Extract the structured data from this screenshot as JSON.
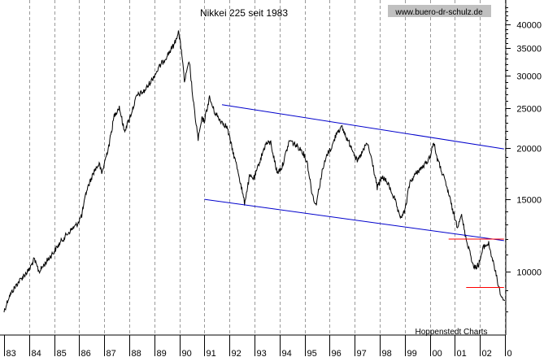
{
  "chart_data": {
    "type": "line",
    "title": "Nikkei 225 seit 1983",
    "source_badge": "www.buero-dr-schulz.de",
    "credit": "Hoppenstedt Charts",
    "y_scale": "log",
    "ylim": [
      7000,
      45000
    ],
    "y_ticks": [
      {
        "value": 40000,
        "label": "40000"
      },
      {
        "value": 35000,
        "label": "35000"
      },
      {
        "value": 30000,
        "label": "30000"
      },
      {
        "value": 25000,
        "label": "25000"
      },
      {
        "value": 20000,
        "label": "20000"
      },
      {
        "value": 15000,
        "label": "15000"
      },
      {
        "value": 10000,
        "label": "10000"
      }
    ],
    "x_ticks": [
      "83",
      "84",
      "85",
      "86",
      "87",
      "88",
      "89",
      "90",
      "91",
      "92",
      "93",
      "94",
      "95",
      "96",
      "97",
      "98",
      "99",
      "00",
      "01",
      "02",
      "0"
    ],
    "xlim": [
      1983.0,
      2003.0
    ],
    "grid": true,
    "series": [
      {
        "color": "#000000",
        "points": [
          [
            1983.0,
            8000
          ],
          [
            1983.2,
            8700
          ],
          [
            1983.5,
            9300
          ],
          [
            1983.8,
            9800
          ],
          [
            1984.0,
            10100
          ],
          [
            1984.2,
            10700
          ],
          [
            1984.4,
            10000
          ],
          [
            1984.7,
            10600
          ],
          [
            1985.0,
            11200
          ],
          [
            1985.3,
            11900
          ],
          [
            1985.6,
            12500
          ],
          [
            1985.9,
            13000
          ],
          [
            1986.1,
            13700
          ],
          [
            1986.3,
            15800
          ],
          [
            1986.6,
            17600
          ],
          [
            1986.8,
            18300
          ],
          [
            1986.9,
            17300
          ],
          [
            1987.2,
            20500
          ],
          [
            1987.4,
            24000
          ],
          [
            1987.6,
            25200
          ],
          [
            1987.8,
            22000
          ],
          [
            1988.0,
            23500
          ],
          [
            1988.3,
            26800
          ],
          [
            1988.6,
            27500
          ],
          [
            1988.9,
            29300
          ],
          [
            1989.2,
            31500
          ],
          [
            1989.5,
            33500
          ],
          [
            1989.8,
            35800
          ],
          [
            1989.96,
            38500
          ],
          [
            1990.1,
            34000
          ],
          [
            1990.2,
            29000
          ],
          [
            1990.4,
            32500
          ],
          [
            1990.55,
            26000
          ],
          [
            1990.75,
            21000
          ],
          [
            1990.9,
            23500
          ],
          [
            1991.0,
            23300
          ],
          [
            1991.2,
            26500
          ],
          [
            1991.4,
            24500
          ],
          [
            1991.6,
            23500
          ],
          [
            1991.9,
            22500
          ],
          [
            1992.1,
            20000
          ],
          [
            1992.35,
            17500
          ],
          [
            1992.6,
            14700
          ],
          [
            1992.8,
            17000
          ],
          [
            1993.0,
            16900
          ],
          [
            1993.2,
            18500
          ],
          [
            1993.45,
            20500
          ],
          [
            1993.65,
            20600
          ],
          [
            1993.9,
            17400
          ],
          [
            1994.1,
            18000
          ],
          [
            1994.4,
            20900
          ],
          [
            1994.7,
            20200
          ],
          [
            1994.9,
            19700
          ],
          [
            1995.1,
            18500
          ],
          [
            1995.3,
            15500
          ],
          [
            1995.45,
            14500
          ],
          [
            1995.7,
            17500
          ],
          [
            1995.9,
            19300
          ],
          [
            1996.1,
            20200
          ],
          [
            1996.3,
            22000
          ],
          [
            1996.5,
            22400
          ],
          [
            1996.7,
            21000
          ],
          [
            1996.9,
            20000
          ],
          [
            1997.1,
            18500
          ],
          [
            1997.3,
            19500
          ],
          [
            1997.5,
            20600
          ],
          [
            1997.7,
            18500
          ],
          [
            1997.9,
            16000
          ],
          [
            1998.1,
            17000
          ],
          [
            1998.3,
            16500
          ],
          [
            1998.6,
            15000
          ],
          [
            1998.8,
            13500
          ],
          [
            1999.0,
            14000
          ],
          [
            1999.2,
            16500
          ],
          [
            1999.5,
            17500
          ],
          [
            1999.8,
            18200
          ],
          [
            2000.0,
            19000
          ],
          [
            2000.15,
            20700
          ],
          [
            2000.3,
            18800
          ],
          [
            2000.55,
            17000
          ],
          [
            2000.75,
            15500
          ],
          [
            2000.95,
            13800
          ],
          [
            2001.1,
            12900
          ],
          [
            2001.25,
            13800
          ],
          [
            2001.45,
            12000
          ],
          [
            2001.6,
            11200
          ],
          [
            2001.75,
            10200
          ],
          [
            2001.95,
            10400
          ],
          [
            2002.15,
            11500
          ],
          [
            2002.35,
            11700
          ],
          [
            2002.55,
            10400
          ],
          [
            2002.75,
            9200
          ],
          [
            2002.85,
            8700
          ],
          [
            2003.0,
            8500
          ]
        ]
      },
      {
        "name": "",
        "color": "#0000cc",
        "points": [
          [
            1991.7,
            25500
          ],
          [
            2002.96,
            19900
          ]
        ]
      },
      {
        "name": "",
        "color": "#0000cc",
        "points": [
          [
            1991.0,
            15000
          ],
          [
            2002.96,
            11900
          ]
        ]
      },
      {
        "name": "",
        "color": "#ff0000",
        "points": [
          [
            2000.75,
            12000
          ],
          [
            2002.96,
            12000
          ]
        ]
      },
      {
        "name": "",
        "color": "#ff0000",
        "points": [
          [
            2001.45,
            9150
          ],
          [
            2002.96,
            9150
          ]
        ]
      }
    ]
  }
}
